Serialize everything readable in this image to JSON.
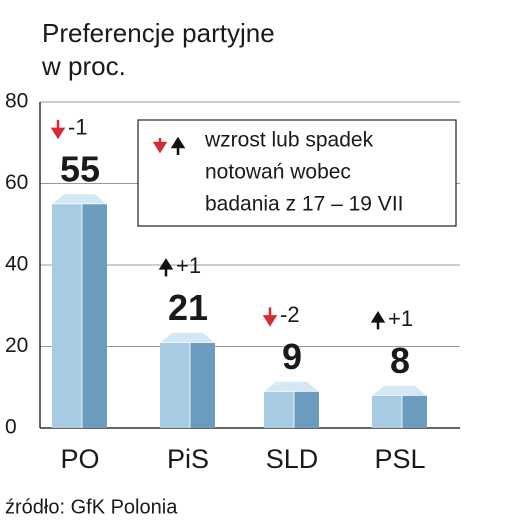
{
  "chart_data": {
    "type": "bar",
    "title_lines": [
      "Preferencje partyjne",
      "w proc."
    ],
    "categories": [
      "PO",
      "PiS",
      "SLD",
      "PSL"
    ],
    "values": [
      55,
      21,
      9,
      8
    ],
    "changes": [
      -1,
      1,
      -2,
      1
    ],
    "change_labels": [
      "-1",
      "+1",
      "-2",
      "+1"
    ],
    "legend_lines": [
      "wzrost lub spadek",
      "notowań wobec",
      "badania z 17 – 19 VII"
    ],
    "source": "źródło: GfK Polonia",
    "ylim": [
      0,
      80
    ],
    "yticks": [
      0,
      20,
      40,
      60,
      80
    ],
    "grid": true,
    "colors": {
      "front": "#a8cbe4",
      "side": "#6b9cbf",
      "top": "#d3e7f4",
      "up": "#111111",
      "down": "#d62b35"
    }
  }
}
